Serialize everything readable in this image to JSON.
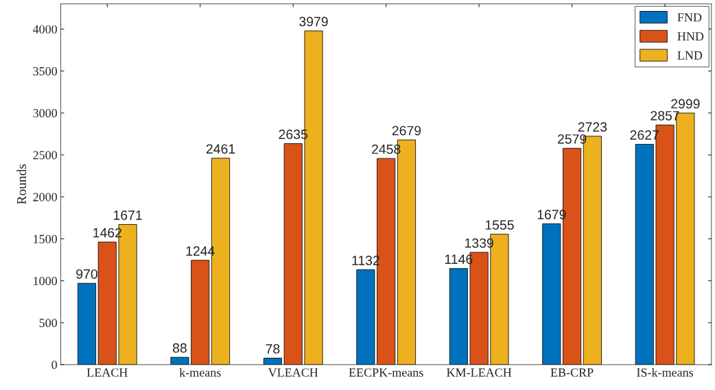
{
  "chart_data": {
    "type": "bar",
    "ylabel": "Rounds",
    "categories": [
      "LEACH",
      "k-means",
      "VLEACH",
      "EECPK-means",
      "KM-LEACH",
      "EB-CRP",
      "IS-k-means"
    ],
    "series": [
      {
        "name": "FND",
        "color": "#0072bd",
        "values": [
          970,
          88,
          78,
          1132,
          1146,
          1679,
          2627
        ]
      },
      {
        "name": "HND",
        "color": "#d95319",
        "values": [
          1462,
          1244,
          2635,
          2458,
          1339,
          2579,
          2857
        ]
      },
      {
        "name": "LND",
        "color": "#edb120",
        "values": [
          1671,
          2461,
          3979,
          2679,
          1555,
          2723,
          2999
        ]
      }
    ],
    "ylim": [
      0,
      4300
    ],
    "yticks": [
      0,
      500,
      1000,
      1500,
      2000,
      2500,
      3000,
      3500,
      4000
    ],
    "data_labels": true,
    "legend": "top right",
    "grid": false
  }
}
